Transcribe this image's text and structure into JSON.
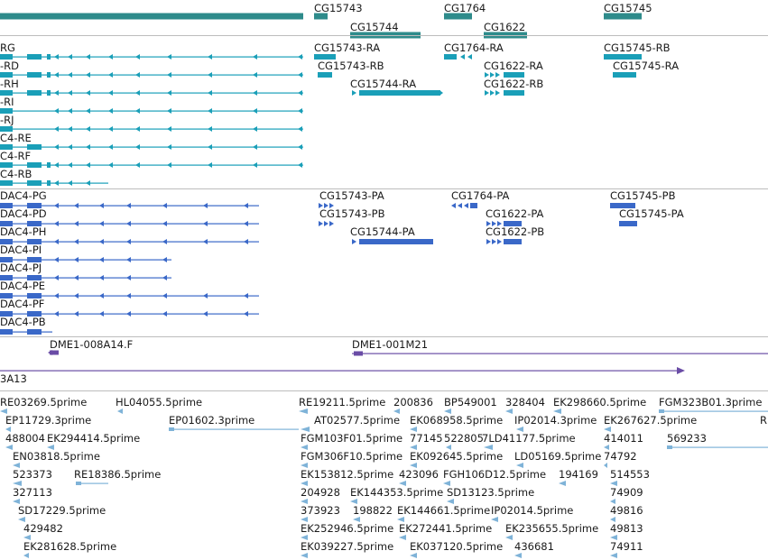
{
  "colors": {
    "gene_track": "#2e8b8b",
    "transcript": "#1a9fb8",
    "protein": "#3a68c8",
    "clone": "#6a4ca6",
    "est": "#7fb3d8",
    "separator": "#bdbdbd"
  },
  "genes": [
    "CG15743",
    "CG15744",
    "CG1764",
    "CG1622",
    "CG15745"
  ],
  "transcripts": {
    "left_labels": [
      "RG",
      "-RD",
      "-RH",
      "-RI",
      "-RJ",
      "C4-RE",
      "C4-RF",
      "C4-RB"
    ],
    "right_labels": [
      "CG15743-RA",
      "CG1764-RA",
      "CG15745-RB",
      "CG15743-RB",
      "CG1622-RA",
      "CG15745-RA",
      "CG15744-RA",
      "CG1622-RB"
    ]
  },
  "proteins": {
    "left_labels": [
      "DAC4-PG",
      "DAC4-PD",
      "DAC4-PH",
      "DAC4-PI",
      "DAC4-PJ",
      "DAC4-PE",
      "DAC4-PF",
      "DAC4-PB"
    ],
    "right_labels": [
      "CG15743-PA",
      "CG1764-PA",
      "CG15745-PB",
      "CG15743-PB",
      "CG1622-PA",
      "CG15745-PA",
      "CG15744-PA",
      "CG1622-PB"
    ]
  },
  "clones": [
    "DME1-008A14.F",
    "DME1-001M21",
    "3A13"
  ],
  "ests": [
    "RE03269.5prime",
    "HL04055.5prime",
    "RE19211.5prime",
    "200836",
    "BP549001",
    "328404",
    "EK298660.5prime",
    "FGM323B01.3prime",
    "EP11729.3prime",
    "EP01602.3prime",
    "AT02577.5prime",
    "EK068958.5prime",
    "IP02014.3prime",
    "EK267627.5prime",
    "R",
    "488004",
    "EK294414.5prime",
    "FGM103F01.5prime",
    "77145",
    "522805",
    "7LD41177.5prime",
    "414011",
    "569233",
    "EN03818.5prime",
    "FGM306F10.5prime",
    "EK092645.5prime",
    "LD05169.5prime",
    "74792",
    "523373",
    "RE18386.5prime",
    "EK153812.5prime",
    "423096",
    "FGH106D12.5prime",
    "194169",
    "514553",
    "327113",
    "204928",
    "EK144353.5prime",
    "SD13123.5prime",
    "74909",
    "SD17229.5prime",
    "373923",
    "198822",
    "EK144661.5prime",
    "IP02014.5prime",
    "49816",
    "429482",
    "EK252946.5prime",
    "EK272441.5prime",
    "EK235655.5prime",
    "49813",
    "EK281628.5prime",
    "EK039227.5prime",
    "EK037120.5prime",
    "436681",
    "74911"
  ]
}
